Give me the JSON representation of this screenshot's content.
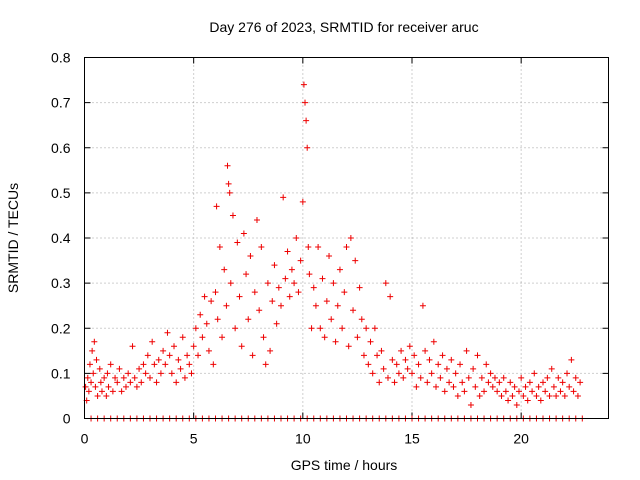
{
  "chart_data": {
    "type": "scatter",
    "title": "Day 276 of 2023, SRMTID for receiver aruc",
    "xlabel": "GPS time / hours",
    "ylabel": "SRMTID / TECUs",
    "xlim": [
      0,
      24
    ],
    "ylim": [
      0,
      0.8
    ],
    "xticks": [
      0,
      5,
      10,
      15,
      20
    ],
    "xtick_labels": [
      "0",
      "5",
      "10",
      "15",
      "20"
    ],
    "yticks": [
      0,
      0.1,
      0.2,
      0.3,
      0.4,
      0.5,
      0.6,
      0.7,
      0.8
    ],
    "ytick_labels": [
      "0",
      "0.1",
      "0.2",
      "0.3",
      "0.4",
      "0.5",
      "0.6",
      "0.7",
      "0.8"
    ],
    "grid": true,
    "marker": "+",
    "series": [
      {
        "name": "SRMTID",
        "color": "#ee0000",
        "points": [
          [
            0.05,
            0.07
          ],
          [
            0.1,
            0.04
          ],
          [
            0.15,
            0.09
          ],
          [
            0.2,
            0.06
          ],
          [
            0.25,
            0.12
          ],
          [
            0.3,
            0.08
          ],
          [
            0.35,
            0.15
          ],
          [
            0.4,
            0.1
          ],
          [
            0.45,
            0.17
          ],
          [
            0.5,
            0.07
          ],
          [
            0.55,
            0.13
          ],
          [
            0.6,
            0.05
          ],
          [
            0.7,
            0.11
          ],
          [
            0.75,
            0.08
          ],
          [
            0.8,
            0.06
          ],
          [
            0.9,
            0.09
          ],
          [
            1.0,
            0.05
          ],
          [
            1.05,
            0.1
          ],
          [
            1.1,
            0.07
          ],
          [
            1.2,
            0.12
          ],
          [
            1.3,
            0.06
          ],
          [
            1.4,
            0.09
          ],
          [
            1.5,
            0.08
          ],
          [
            1.6,
            0.11
          ],
          [
            1.7,
            0.06
          ],
          [
            1.8,
            0.09
          ],
          [
            1.9,
            0.07
          ],
          [
            2.0,
            0.1
          ],
          [
            2.1,
            0.08
          ],
          [
            2.2,
            0.16
          ],
          [
            2.3,
            0.09
          ],
          [
            2.4,
            0.07
          ],
          [
            2.5,
            0.11
          ],
          [
            2.6,
            0.08
          ],
          [
            2.7,
            0.12
          ],
          [
            2.8,
            0.1
          ],
          [
            2.9,
            0.14
          ],
          [
            3.0,
            0.09
          ],
          [
            3.1,
            0.17
          ],
          [
            3.2,
            0.12
          ],
          [
            3.3,
            0.08
          ],
          [
            3.4,
            0.13
          ],
          [
            3.5,
            0.1
          ],
          [
            3.6,
            0.15
          ],
          [
            3.7,
            0.12
          ],
          [
            3.8,
            0.19
          ],
          [
            3.9,
            0.14
          ],
          [
            4.0,
            0.1
          ],
          [
            4.1,
            0.16
          ],
          [
            4.2,
            0.08
          ],
          [
            4.3,
            0.13
          ],
          [
            4.4,
            0.11
          ],
          [
            4.5,
            0.18
          ],
          [
            4.6,
            0.09
          ],
          [
            4.7,
            0.14
          ],
          [
            4.8,
            0.12
          ],
          [
            4.9,
            0.1
          ],
          [
            5.0,
            0.16
          ],
          [
            5.1,
            0.2
          ],
          [
            5.2,
            0.14
          ],
          [
            5.3,
            0.23
          ],
          [
            5.4,
            0.18
          ],
          [
            5.5,
            0.27
          ],
          [
            5.6,
            0.21
          ],
          [
            5.7,
            0.15
          ],
          [
            5.8,
            0.26
          ],
          [
            5.9,
            0.12
          ],
          [
            6.0,
            0.28
          ],
          [
            6.05,
            0.47
          ],
          [
            6.1,
            0.22
          ],
          [
            6.2,
            0.38
          ],
          [
            6.3,
            0.18
          ],
          [
            6.4,
            0.33
          ],
          [
            6.5,
            0.25
          ],
          [
            6.55,
            0.56
          ],
          [
            6.6,
            0.52
          ],
          [
            6.65,
            0.5
          ],
          [
            6.7,
            0.3
          ],
          [
            6.8,
            0.45
          ],
          [
            6.9,
            0.2
          ],
          [
            7.0,
            0.39
          ],
          [
            7.1,
            0.27
          ],
          [
            7.2,
            0.16
          ],
          [
            7.3,
            0.41
          ],
          [
            7.4,
            0.32
          ],
          [
            7.5,
            0.22
          ],
          [
            7.6,
            0.36
          ],
          [
            7.7,
            0.14
          ],
          [
            7.8,
            0.28
          ],
          [
            7.9,
            0.44
          ],
          [
            8.0,
            0.24
          ],
          [
            8.1,
            0.38
          ],
          [
            8.2,
            0.18
          ],
          [
            8.3,
            0.12
          ],
          [
            8.4,
            0.3
          ],
          [
            8.5,
            0.15
          ],
          [
            8.6,
            0.26
          ],
          [
            8.7,
            0.34
          ],
          [
            8.8,
            0.21
          ],
          [
            8.9,
            0.29
          ],
          [
            9.0,
            0.25
          ],
          [
            9.1,
            0.49
          ],
          [
            9.2,
            0.31
          ],
          [
            9.3,
            0.37
          ],
          [
            9.4,
            0.27
          ],
          [
            9.5,
            0.33
          ],
          [
            9.6,
            0.3
          ],
          [
            9.7,
            0.4
          ],
          [
            9.8,
            0.28
          ],
          [
            9.9,
            0.35
          ],
          [
            10.0,
            0.48
          ],
          [
            10.05,
            0.74
          ],
          [
            10.1,
            0.7
          ],
          [
            10.15,
            0.66
          ],
          [
            10.2,
            0.6
          ],
          [
            10.25,
            0.38
          ],
          [
            10.3,
            0.32
          ],
          [
            10.4,
            0.2
          ],
          [
            10.5,
            0.29
          ],
          [
            10.6,
            0.25
          ],
          [
            10.7,
            0.38
          ],
          [
            10.8,
            0.2
          ],
          [
            10.9,
            0.31
          ],
          [
            11.0,
            0.18
          ],
          [
            11.1,
            0.26
          ],
          [
            11.2,
            0.36
          ],
          [
            11.3,
            0.22
          ],
          [
            11.4,
            0.3
          ],
          [
            11.5,
            0.17
          ],
          [
            11.6,
            0.25
          ],
          [
            11.7,
            0.33
          ],
          [
            11.8,
            0.2
          ],
          [
            11.9,
            0.28
          ],
          [
            12.0,
            0.38
          ],
          [
            12.1,
            0.16
          ],
          [
            12.2,
            0.4
          ],
          [
            12.3,
            0.24
          ],
          [
            12.4,
            0.35
          ],
          [
            12.5,
            0.18
          ],
          [
            12.6,
            0.29
          ],
          [
            12.7,
            0.22
          ],
          [
            12.8,
            0.14
          ],
          [
            12.9,
            0.2
          ],
          [
            13.0,
            0.12
          ],
          [
            13.1,
            0.17
          ],
          [
            13.2,
            0.1
          ],
          [
            13.3,
            0.2
          ],
          [
            13.4,
            0.14
          ],
          [
            13.5,
            0.08
          ],
          [
            13.6,
            0.15
          ],
          [
            13.7,
            0.11
          ],
          [
            13.8,
            0.3
          ],
          [
            13.9,
            0.09
          ],
          [
            14.0,
            0.27
          ],
          [
            14.1,
            0.13
          ],
          [
            14.2,
            0.08
          ],
          [
            14.3,
            0.12
          ],
          [
            14.4,
            0.1
          ],
          [
            14.5,
            0.15
          ],
          [
            14.6,
            0.09
          ],
          [
            14.7,
            0.13
          ],
          [
            14.8,
            0.11
          ],
          [
            14.9,
            0.16
          ],
          [
            15.0,
            0.1
          ],
          [
            15.1,
            0.14
          ],
          [
            15.2,
            0.07
          ],
          [
            15.3,
            0.12
          ],
          [
            15.4,
            0.09
          ],
          [
            15.5,
            0.25
          ],
          [
            15.6,
            0.15
          ],
          [
            15.7,
            0.08
          ],
          [
            15.8,
            0.13
          ],
          [
            15.9,
            0.1
          ],
          [
            16.0,
            0.17
          ],
          [
            16.1,
            0.07
          ],
          [
            16.2,
            0.12
          ],
          [
            16.3,
            0.09
          ],
          [
            16.4,
            0.14
          ],
          [
            16.5,
            0.06
          ],
          [
            16.6,
            0.11
          ],
          [
            16.7,
            0.08
          ],
          [
            16.8,
            0.13
          ],
          [
            16.9,
            0.07
          ],
          [
            17.0,
            0.1
          ],
          [
            17.1,
            0.05
          ],
          [
            17.2,
            0.12
          ],
          [
            17.3,
            0.08
          ],
          [
            17.4,
            0.06
          ],
          [
            17.5,
            0.15
          ],
          [
            17.6,
            0.09
          ],
          [
            17.7,
            0.03
          ],
          [
            17.8,
            0.11
          ],
          [
            17.9,
            0.07
          ],
          [
            18.0,
            0.14
          ],
          [
            18.1,
            0.05
          ],
          [
            18.2,
            0.09
          ],
          [
            18.3,
            0.06
          ],
          [
            18.4,
            0.12
          ],
          [
            18.5,
            0.08
          ],
          [
            18.6,
            0.1
          ],
          [
            18.7,
            0.07
          ],
          [
            18.8,
            0.09
          ],
          [
            18.9,
            0.06
          ],
          [
            19.0,
            0.08
          ],
          [
            19.1,
            0.05
          ],
          [
            19.2,
            0.09
          ],
          [
            19.3,
            0.06
          ],
          [
            19.4,
            0.04
          ],
          [
            19.5,
            0.08
          ],
          [
            19.6,
            0.05
          ],
          [
            19.7,
            0.07
          ],
          [
            19.8,
            0.03
          ],
          [
            19.9,
            0.06
          ],
          [
            20.0,
            0.09
          ],
          [
            20.1,
            0.05
          ],
          [
            20.2,
            0.07
          ],
          [
            20.3,
            0.04
          ],
          [
            20.4,
            0.08
          ],
          [
            20.5,
            0.06
          ],
          [
            20.6,
            0.1
          ],
          [
            20.7,
            0.05
          ],
          [
            20.8,
            0.07
          ],
          [
            20.9,
            0.04
          ],
          [
            21.0,
            0.08
          ],
          [
            21.1,
            0.06
          ],
          [
            21.2,
            0.09
          ],
          [
            21.3,
            0.05
          ],
          [
            21.4,
            0.11
          ],
          [
            21.5,
            0.07
          ],
          [
            21.6,
            0.05
          ],
          [
            21.7,
            0.09
          ],
          [
            21.8,
            0.06
          ],
          [
            21.9,
            0.08
          ],
          [
            22.0,
            0.05
          ],
          [
            22.1,
            0.1
          ],
          [
            22.2,
            0.07
          ],
          [
            22.3,
            0.13
          ],
          [
            22.4,
            0.06
          ],
          [
            22.5,
            0.09
          ],
          [
            22.6,
            0.05
          ],
          [
            22.7,
            0.08
          ]
        ]
      }
    ],
    "baseline_zero_x": [
      0.3,
      0.6,
      0.9,
      1.2,
      1.5,
      1.8,
      2.1,
      2.4,
      2.7,
      3.0,
      3.3,
      3.6,
      3.9,
      4.2,
      4.5,
      4.8,
      5.1,
      5.4,
      5.7,
      6.0,
      6.3,
      6.6,
      6.9,
      7.2,
      7.5,
      7.8,
      8.1,
      8.4,
      8.7,
      9.0,
      9.3,
      9.6,
      9.9,
      10.2,
      10.5,
      10.8,
      11.1,
      11.4,
      11.7,
      12.0,
      12.3,
      12.6,
      12.9,
      13.2,
      13.5,
      13.8,
      14.1,
      14.4,
      14.7,
      15.0,
      15.3,
      15.6,
      15.9,
      16.2,
      16.5,
      16.8,
      17.1,
      17.4,
      17.7,
      18.0,
      18.3,
      18.6,
      18.9,
      19.2,
      19.5,
      19.8,
      20.1,
      20.4,
      20.7,
      21.0,
      21.3,
      21.6,
      21.9,
      22.2,
      22.5,
      22.8
    ]
  }
}
